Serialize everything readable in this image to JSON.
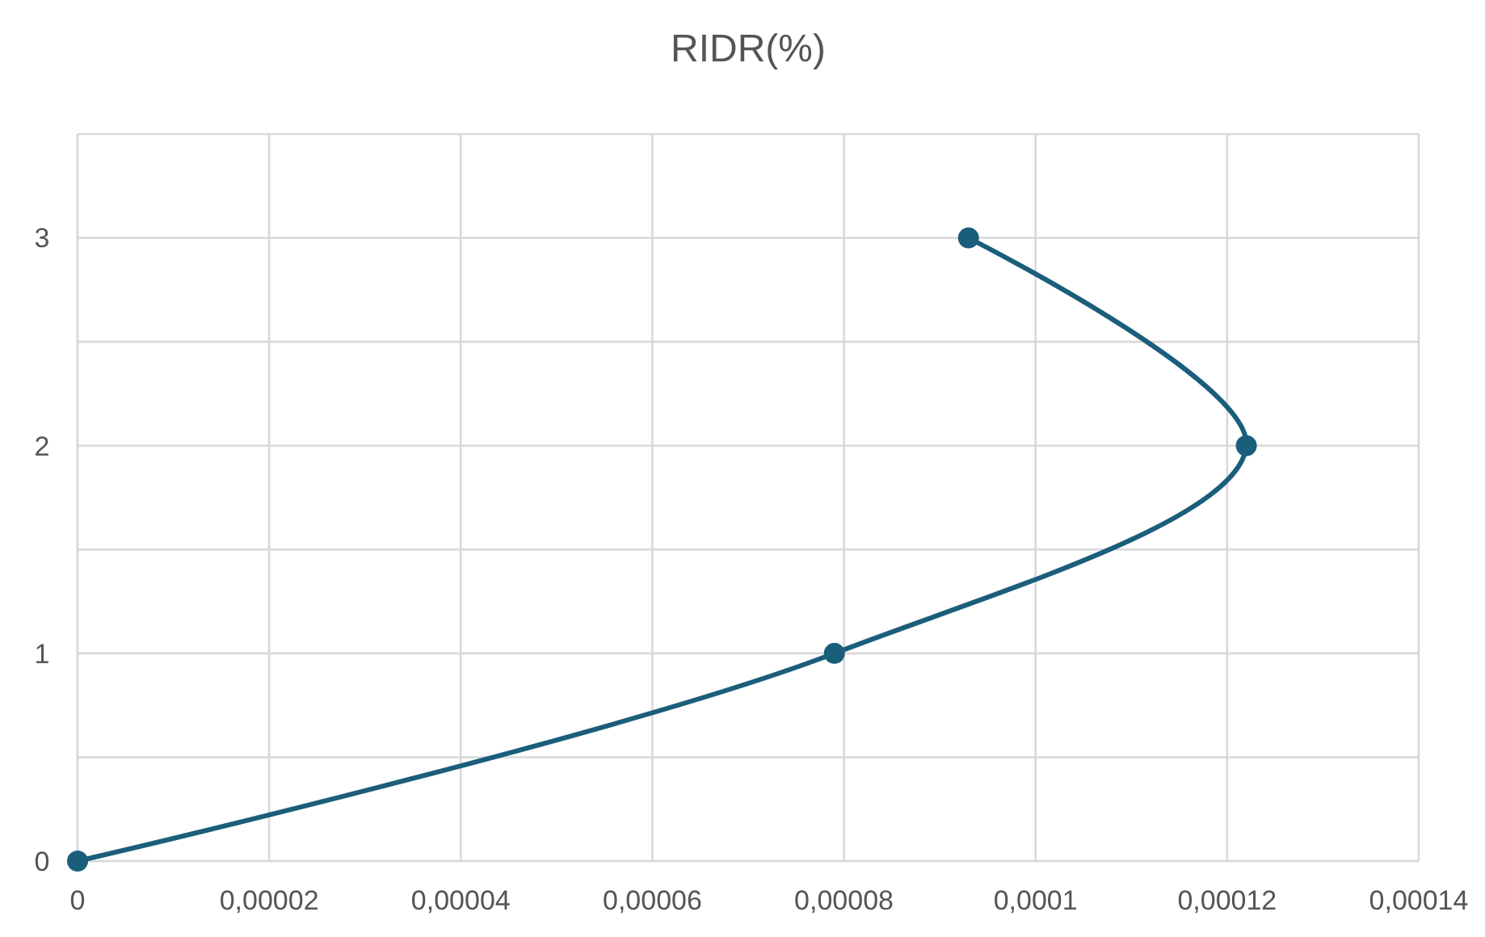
{
  "chart_data": {
    "type": "line",
    "title": "RIDR(%)",
    "x": [
      0,
      7.9e-05,
      0.000122,
      9.3e-05
    ],
    "series": [
      {
        "color": "#1b5e7b",
        "values": [
          0,
          1,
          2,
          3
        ]
      }
    ],
    "xlim": [
      0,
      0.00014
    ],
    "xticks": [
      0,
      {
        "value": 2e-05,
        "label": "0,00002"
      },
      {
        "value": 4e-05,
        "label": "0,00004"
      },
      {
        "value": 6e-05,
        "label": "0,00006"
      },
      {
        "value": 8e-05,
        "label": "0,00008"
      },
      {
        "value": 0.0001,
        "label": "0,0001"
      },
      {
        "value": 0.00012,
        "label": "0,00012"
      },
      {
        "value": 0.00014,
        "label": "0,00014"
      }
    ],
    "ylim": [
      0,
      3.5
    ],
    "yticks": [
      0,
      {
        "value": 0.5,
        "label": null
      },
      1,
      {
        "value": 1.5,
        "label": null
      },
      2,
      {
        "value": 2.5,
        "label": null
      },
      3,
      {
        "value": 3.5,
        "label": null
      }
    ],
    "grid": true,
    "marker": "circle",
    "line_style": "solid"
  }
}
